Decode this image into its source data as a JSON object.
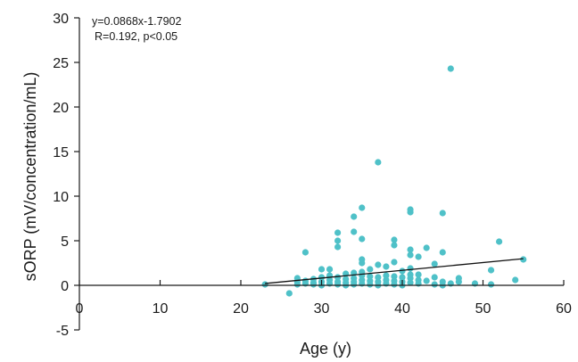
{
  "chart_data": {
    "type": "scatter",
    "xlabel": "Age (y)",
    "ylabel": "sORP (mV/concentration/mL)",
    "xlim": [
      0,
      60
    ],
    "ylim": [
      -5,
      30
    ],
    "x_ticks": [
      0,
      10,
      20,
      30,
      40,
      50,
      60
    ],
    "y_ticks": [
      -5,
      0,
      5,
      10,
      15,
      20,
      25,
      30
    ],
    "grid": false,
    "annotations": [
      "y=0.0868x-1.7902",
      "R=0.192, p<0.05"
    ],
    "trendline": {
      "slope": 0.0868,
      "intercept": -1.7902,
      "x_range": [
        23,
        55
      ]
    },
    "colors": {
      "points": "#4fc1c8",
      "axis": "#1a1a1a",
      "trendline": "#111111"
    },
    "points": [
      [
        23,
        0.1
      ],
      [
        26,
        -0.9
      ],
      [
        27,
        0.1
      ],
      [
        27,
        0.4
      ],
      [
        27,
        0.8
      ],
      [
        28,
        0.2
      ],
      [
        28,
        0.5
      ],
      [
        28,
        3.7
      ],
      [
        29,
        0.1
      ],
      [
        29,
        0.3
      ],
      [
        29,
        0.7
      ],
      [
        30,
        0.0
      ],
      [
        30,
        0.4
      ],
      [
        30,
        0.9
      ],
      [
        30,
        1.8
      ],
      [
        31,
        0.2
      ],
      [
        31,
        0.6
      ],
      [
        31,
        1.1
      ],
      [
        31,
        1.8
      ],
      [
        32,
        0.1
      ],
      [
        32,
        0.4
      ],
      [
        32,
        0.9
      ],
      [
        32,
        4.3
      ],
      [
        32,
        5.0
      ],
      [
        32,
        5.9
      ],
      [
        33,
        0.0
      ],
      [
        33,
        0.3
      ],
      [
        33,
        0.7
      ],
      [
        33,
        1.3
      ],
      [
        34,
        0.1
      ],
      [
        34,
        0.4
      ],
      [
        34,
        0.8
      ],
      [
        34,
        1.4
      ],
      [
        34,
        6.0
      ],
      [
        34,
        7.7
      ],
      [
        35,
        0.2
      ],
      [
        35,
        0.6
      ],
      [
        35,
        1.1
      ],
      [
        35,
        1.5
      ],
      [
        35,
        2.5
      ],
      [
        35,
        2.9
      ],
      [
        35,
        5.2
      ],
      [
        35,
        8.7
      ],
      [
        36,
        0.1
      ],
      [
        36,
        0.5
      ],
      [
        36,
        1.0
      ],
      [
        36,
        1.8
      ],
      [
        37,
        0.0
      ],
      [
        37,
        0.4
      ],
      [
        37,
        0.9
      ],
      [
        37,
        2.3
      ],
      [
        37,
        13.8
      ],
      [
        38,
        0.2
      ],
      [
        38,
        0.6
      ],
      [
        38,
        1.1
      ],
      [
        38,
        2.1
      ],
      [
        39,
        0.1
      ],
      [
        39,
        0.5
      ],
      [
        39,
        1.0
      ],
      [
        39,
        2.6
      ],
      [
        39,
        4.5
      ],
      [
        39,
        5.1
      ],
      [
        40,
        0.0
      ],
      [
        40,
        0.4
      ],
      [
        40,
        0.9
      ],
      [
        40,
        1.6
      ],
      [
        41,
        0.3
      ],
      [
        41,
        0.8
      ],
      [
        41,
        1.2
      ],
      [
        41,
        1.9
      ],
      [
        41,
        3.4
      ],
      [
        41,
        4.0
      ],
      [
        41,
        8.2
      ],
      [
        41,
        8.5
      ],
      [
        42,
        0.2
      ],
      [
        42,
        0.6
      ],
      [
        42,
        1.2
      ],
      [
        42,
        3.2
      ],
      [
        43,
        0.5
      ],
      [
        43,
        4.2
      ],
      [
        44,
        0.1
      ],
      [
        44,
        0.9
      ],
      [
        44,
        2.4
      ],
      [
        45,
        0.0
      ],
      [
        45,
        0.4
      ],
      [
        45,
        3.7
      ],
      [
        45,
        8.1
      ],
      [
        46,
        0.2
      ],
      [
        46,
        24.3
      ],
      [
        47,
        0.4
      ],
      [
        47,
        0.8
      ],
      [
        49,
        0.2
      ],
      [
        51,
        0.1
      ],
      [
        51,
        1.7
      ],
      [
        52,
        4.9
      ],
      [
        54,
        0.6
      ],
      [
        55,
        2.9
      ]
    ]
  }
}
